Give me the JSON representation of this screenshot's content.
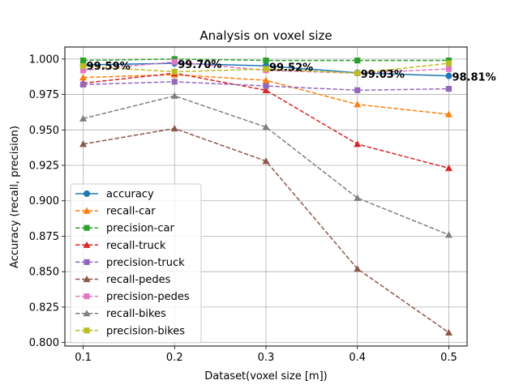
{
  "chart_data": {
    "type": "line",
    "title": "Analysis on voxel size",
    "xlabel": "Dataset(voxel size [m])",
    "ylabel": "Accuracy (recall, precision)",
    "x": [
      0.1,
      0.2,
      0.3,
      0.4,
      0.5
    ],
    "x_ticks": [
      "0.1",
      "0.2",
      "0.3",
      "0.4",
      "0.5"
    ],
    "y_ticks": [
      "0.800",
      "0.825",
      "0.850",
      "0.875",
      "0.900",
      "0.925",
      "0.950",
      "0.975",
      "1.000"
    ],
    "xlim": [
      0.08,
      0.52
    ],
    "ylim": [
      0.7975,
      1.0085
    ],
    "grid": true,
    "legend_position": "lower-left",
    "series": [
      {
        "name": "accuracy",
        "color": "#1f77b4",
        "marker": "circle",
        "dash": "solid",
        "values": [
          0.9959,
          0.997,
          0.9952,
          0.9903,
          0.9881
        ]
      },
      {
        "name": "recall-car",
        "color": "#ff7f0e",
        "marker": "triangle",
        "dash": "dashed",
        "values": [
          0.987,
          0.989,
          0.985,
          0.968,
          0.961
        ]
      },
      {
        "name": "precision-car",
        "color": "#2ca02c",
        "marker": "square",
        "dash": "dashed",
        "values": [
          0.999,
          1.0,
          0.999,
          0.999,
          0.999
        ]
      },
      {
        "name": "recall-truck",
        "color": "#d62728",
        "marker": "triangle",
        "dash": "dashed",
        "values": [
          0.983,
          0.99,
          0.978,
          0.94,
          0.923
        ]
      },
      {
        "name": "precision-truck",
        "color": "#9467bd",
        "marker": "square",
        "dash": "dashed",
        "values": [
          0.982,
          0.984,
          0.981,
          0.978,
          0.979
        ]
      },
      {
        "name": "recall-pedes",
        "color": "#8c564b",
        "marker": "triangle",
        "dash": "dashed",
        "values": [
          0.94,
          0.951,
          0.928,
          0.852,
          0.807
        ]
      },
      {
        "name": "precision-pedes",
        "color": "#e377c2",
        "marker": "square",
        "dash": "dashed",
        "values": [
          0.992,
          0.998,
          0.992,
          0.99,
          0.993
        ]
      },
      {
        "name": "recall-bikes",
        "color": "#7f7f7f",
        "marker": "triangle",
        "dash": "dashed",
        "values": [
          0.958,
          0.974,
          0.952,
          0.902,
          0.876
        ]
      },
      {
        "name": "precision-bikes",
        "color": "#bcbd22",
        "marker": "square",
        "dash": "dashed",
        "values": [
          0.995,
          0.991,
          0.993,
          0.99,
          0.997
        ]
      }
    ],
    "annotations": [
      {
        "text": "99.59%",
        "x": 0.1,
        "y": 0.9959
      },
      {
        "text": "99.70%",
        "x": 0.2,
        "y": 0.997
      },
      {
        "text": "99.52%",
        "x": 0.3,
        "y": 0.9952
      },
      {
        "text": "99.03%",
        "x": 0.4,
        "y": 0.9903
      },
      {
        "text": "98.81%",
        "x": 0.5,
        "y": 0.9881
      }
    ]
  }
}
